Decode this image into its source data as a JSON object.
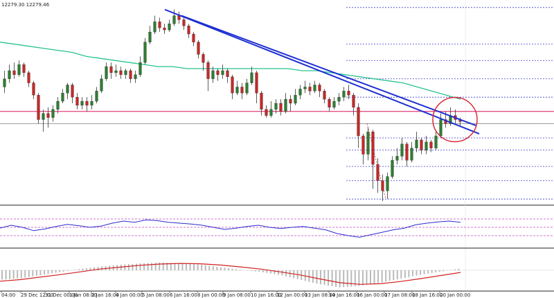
{
  "header": {
    "ohlc_text": "12279.30 12279.46"
  },
  "chart_data": {
    "type": "candlestick",
    "x_tick_labels": [
      "04:00",
      "29 Dec 12:00",
      "31 Dec 00:00",
      "1 Jan 08:00",
      "2 Jan 16:00",
      "4 Jan 00:00",
      "5 Jan 08:00",
      "6 Jan 16:00",
      "8 Jan 00:00",
      "9 Jan 08:00",
      "10 Jan 16:00",
      "12 Jan 00:00",
      "13 Jan 08:00",
      "14 Jan 16:00",
      "16 Jan 00:00",
      "17 Jan 08:00",
      "18 Jan 16:00",
      "20 Jan 00:00"
    ],
    "price_panel": {
      "ylim": [
        0,
        1
      ],
      "candles": [
        [
          0.58,
          0.62,
          0.66,
          0.55
        ],
        [
          0.62,
          0.66,
          0.69,
          0.6
        ],
        [
          0.66,
          0.64,
          0.7,
          0.62
        ],
        [
          0.64,
          0.69,
          0.71,
          0.63
        ],
        [
          0.69,
          0.65,
          0.7,
          0.63
        ],
        [
          0.65,
          0.6,
          0.66,
          0.58
        ],
        [
          0.6,
          0.54,
          0.61,
          0.52
        ],
        [
          0.54,
          0.42,
          0.55,
          0.4
        ],
        [
          0.42,
          0.45,
          0.47,
          0.36
        ],
        [
          0.45,
          0.43,
          0.48,
          0.38
        ],
        [
          0.43,
          0.47,
          0.49,
          0.41
        ],
        [
          0.47,
          0.51,
          0.53,
          0.45
        ],
        [
          0.51,
          0.55,
          0.57,
          0.5
        ],
        [
          0.55,
          0.59,
          0.6,
          0.52
        ],
        [
          0.59,
          0.53,
          0.6,
          0.5
        ],
        [
          0.53,
          0.49,
          0.55,
          0.47
        ],
        [
          0.49,
          0.51,
          0.53,
          0.47
        ],
        [
          0.51,
          0.49,
          0.53,
          0.46
        ],
        [
          0.49,
          0.51,
          0.54,
          0.47
        ],
        [
          0.51,
          0.56,
          0.58,
          0.5
        ],
        [
          0.56,
          0.62,
          0.64,
          0.55
        ],
        [
          0.62,
          0.68,
          0.7,
          0.61
        ],
        [
          0.68,
          0.65,
          0.7,
          0.62
        ],
        [
          0.65,
          0.66,
          0.69,
          0.63
        ],
        [
          0.66,
          0.64,
          0.68,
          0.62
        ],
        [
          0.64,
          0.66,
          0.67,
          0.62
        ],
        [
          0.66,
          0.62,
          0.67,
          0.6
        ],
        [
          0.62,
          0.64,
          0.66,
          0.6
        ],
        [
          0.64,
          0.7,
          0.73,
          0.63
        ],
        [
          0.7,
          0.8,
          0.82,
          0.69
        ],
        [
          0.8,
          0.85,
          0.88,
          0.79
        ],
        [
          0.85,
          0.9,
          0.93,
          0.84
        ],
        [
          0.9,
          0.87,
          0.92,
          0.85
        ],
        [
          0.87,
          0.86,
          0.89,
          0.84
        ],
        [
          0.86,
          0.89,
          0.91,
          0.85
        ],
        [
          0.89,
          0.93,
          0.96,
          0.88
        ],
        [
          0.93,
          0.91,
          0.95,
          0.89
        ],
        [
          0.91,
          0.88,
          0.92,
          0.86
        ],
        [
          0.88,
          0.84,
          0.89,
          0.82
        ],
        [
          0.84,
          0.8,
          0.85,
          0.78
        ],
        [
          0.8,
          0.74,
          0.81,
          0.72
        ],
        [
          0.74,
          0.7,
          0.75,
          0.66
        ],
        [
          0.7,
          0.62,
          0.71,
          0.56
        ],
        [
          0.62,
          0.66,
          0.68,
          0.6
        ],
        [
          0.66,
          0.64,
          0.67,
          0.61
        ],
        [
          0.64,
          0.66,
          0.69,
          0.62
        ],
        [
          0.66,
          0.63,
          0.67,
          0.6
        ],
        [
          0.63,
          0.55,
          0.64,
          0.52
        ],
        [
          0.55,
          0.58,
          0.61,
          0.54
        ],
        [
          0.58,
          0.55,
          0.6,
          0.52
        ],
        [
          0.55,
          0.6,
          0.62,
          0.54
        ],
        [
          0.6,
          0.65,
          0.68,
          0.59
        ],
        [
          0.65,
          0.55,
          0.66,
          0.5
        ],
        [
          0.55,
          0.47,
          0.56,
          0.44
        ],
        [
          0.47,
          0.44,
          0.49,
          0.43
        ],
        [
          0.44,
          0.47,
          0.51,
          0.43
        ],
        [
          0.47,
          0.5,
          0.52,
          0.45
        ],
        [
          0.5,
          0.46,
          0.52,
          0.44
        ],
        [
          0.46,
          0.52,
          0.55,
          0.45
        ],
        [
          0.52,
          0.5,
          0.54,
          0.46
        ],
        [
          0.5,
          0.54,
          0.57,
          0.49
        ],
        [
          0.54,
          0.57,
          0.59,
          0.52
        ],
        [
          0.57,
          0.58,
          0.61,
          0.55
        ],
        [
          0.58,
          0.56,
          0.6,
          0.54
        ],
        [
          0.56,
          0.59,
          0.61,
          0.55
        ],
        [
          0.59,
          0.56,
          0.6,
          0.53
        ],
        [
          0.56,
          0.52,
          0.57,
          0.5
        ],
        [
          0.52,
          0.48,
          0.53,
          0.46
        ],
        [
          0.48,
          0.51,
          0.53,
          0.47
        ],
        [
          0.51,
          0.53,
          0.55,
          0.49
        ],
        [
          0.53,
          0.56,
          0.58,
          0.51
        ],
        [
          0.56,
          0.54,
          0.59,
          0.52
        ],
        [
          0.54,
          0.48,
          0.55,
          0.44
        ],
        [
          0.48,
          0.34,
          0.5,
          0.28
        ],
        [
          0.34,
          0.25,
          0.35,
          0.2
        ],
        [
          0.25,
          0.36,
          0.38,
          0.22
        ],
        [
          0.36,
          0.2,
          0.37,
          0.08
        ],
        [
          0.2,
          0.12,
          0.23,
          0.06
        ],
        [
          0.12,
          0.07,
          0.15,
          0.02
        ],
        [
          0.07,
          0.14,
          0.16,
          0.03
        ],
        [
          0.14,
          0.22,
          0.24,
          0.13
        ],
        [
          0.22,
          0.24,
          0.28,
          0.2
        ],
        [
          0.24,
          0.3,
          0.33,
          0.22
        ],
        [
          0.3,
          0.22,
          0.31,
          0.19
        ],
        [
          0.22,
          0.28,
          0.31,
          0.21
        ],
        [
          0.28,
          0.32,
          0.36,
          0.26
        ],
        [
          0.32,
          0.27,
          0.33,
          0.25
        ],
        [
          0.27,
          0.31,
          0.34,
          0.25
        ],
        [
          0.31,
          0.28,
          0.32,
          0.26
        ],
        [
          0.28,
          0.34,
          0.36,
          0.27
        ],
        [
          0.34,
          0.42,
          0.45,
          0.33
        ],
        [
          0.42,
          0.4,
          0.46,
          0.38
        ],
        [
          0.4,
          0.44,
          0.48,
          0.39
        ],
        [
          0.44,
          0.42,
          0.47,
          0.4
        ],
        [
          0.42,
          0.41,
          0.43,
          0.39
        ]
      ],
      "moving_average": [
        0.8,
        0.79,
        0.78,
        0.77,
        0.76,
        0.75,
        0.73,
        0.72,
        0.71,
        0.7,
        0.69,
        0.68,
        0.68,
        0.67,
        0.67,
        0.67,
        0.67,
        0.67,
        0.67,
        0.67,
        0.67,
        0.66,
        0.66,
        0.65,
        0.64,
        0.63,
        0.62,
        0.61,
        0.6,
        0.58,
        0.56,
        0.54,
        0.52
      ],
      "support_level": 0.46,
      "grey_level": 0.4,
      "trendlines": [
        [
          0.96,
          0.35
        ],
        [
          0.93,
          0.39
        ]
      ],
      "fib_levels": [
        0.97,
        0.79,
        0.71,
        0.62,
        0.53,
        0.46,
        0.4,
        0.33,
        0.27,
        0.19,
        0.12,
        0.03
      ]
    },
    "rsi_panel": {
      "levels": [
        70,
        50,
        30
      ],
      "values": [
        48,
        55,
        50,
        42,
        46,
        52,
        57,
        54,
        50,
        53,
        60,
        65,
        62,
        68,
        66,
        62,
        60,
        58,
        55,
        50,
        45,
        48,
        52,
        55,
        50,
        47,
        50,
        52,
        48,
        44,
        35,
        30,
        26,
        32,
        38,
        44,
        48,
        56,
        60,
        63,
        65,
        62
      ]
    },
    "macd_panel": {
      "histogram": [
        -0.3,
        -0.25,
        -0.15,
        -0.05,
        0.05,
        0.12,
        0.18,
        0.22,
        0.25,
        0.22,
        0.18,
        0.1,
        0.02,
        -0.05,
        -0.15,
        -0.3,
        -0.45,
        -0.55,
        -0.5,
        -0.4,
        -0.28,
        -0.15,
        -0.05,
        0.05
      ],
      "signal": [
        -0.35,
        -0.3,
        -0.22,
        -0.14,
        -0.05,
        0.04,
        0.1,
        0.16,
        0.2,
        0.22,
        0.21,
        0.17,
        0.11,
        0.04,
        -0.05,
        -0.15,
        -0.28,
        -0.4,
        -0.45,
        -0.43,
        -0.36,
        -0.27,
        -0.17,
        -0.07
      ]
    }
  },
  "colors": {
    "bull": "#2e7d32",
    "bear": "#c62828",
    "ma": "#26c28e",
    "support": "#e0407a",
    "trend": "#1f2fd1",
    "fib": "#3a3ad0",
    "circle": "#d8293a",
    "rsi": "#2a2acc",
    "rsi_level": "#c040c0",
    "macd_hist": "#b9b9b9",
    "macd_signal": "#d0201f",
    "grid": "#222222",
    "grey_level": "#9a9a9a"
  }
}
